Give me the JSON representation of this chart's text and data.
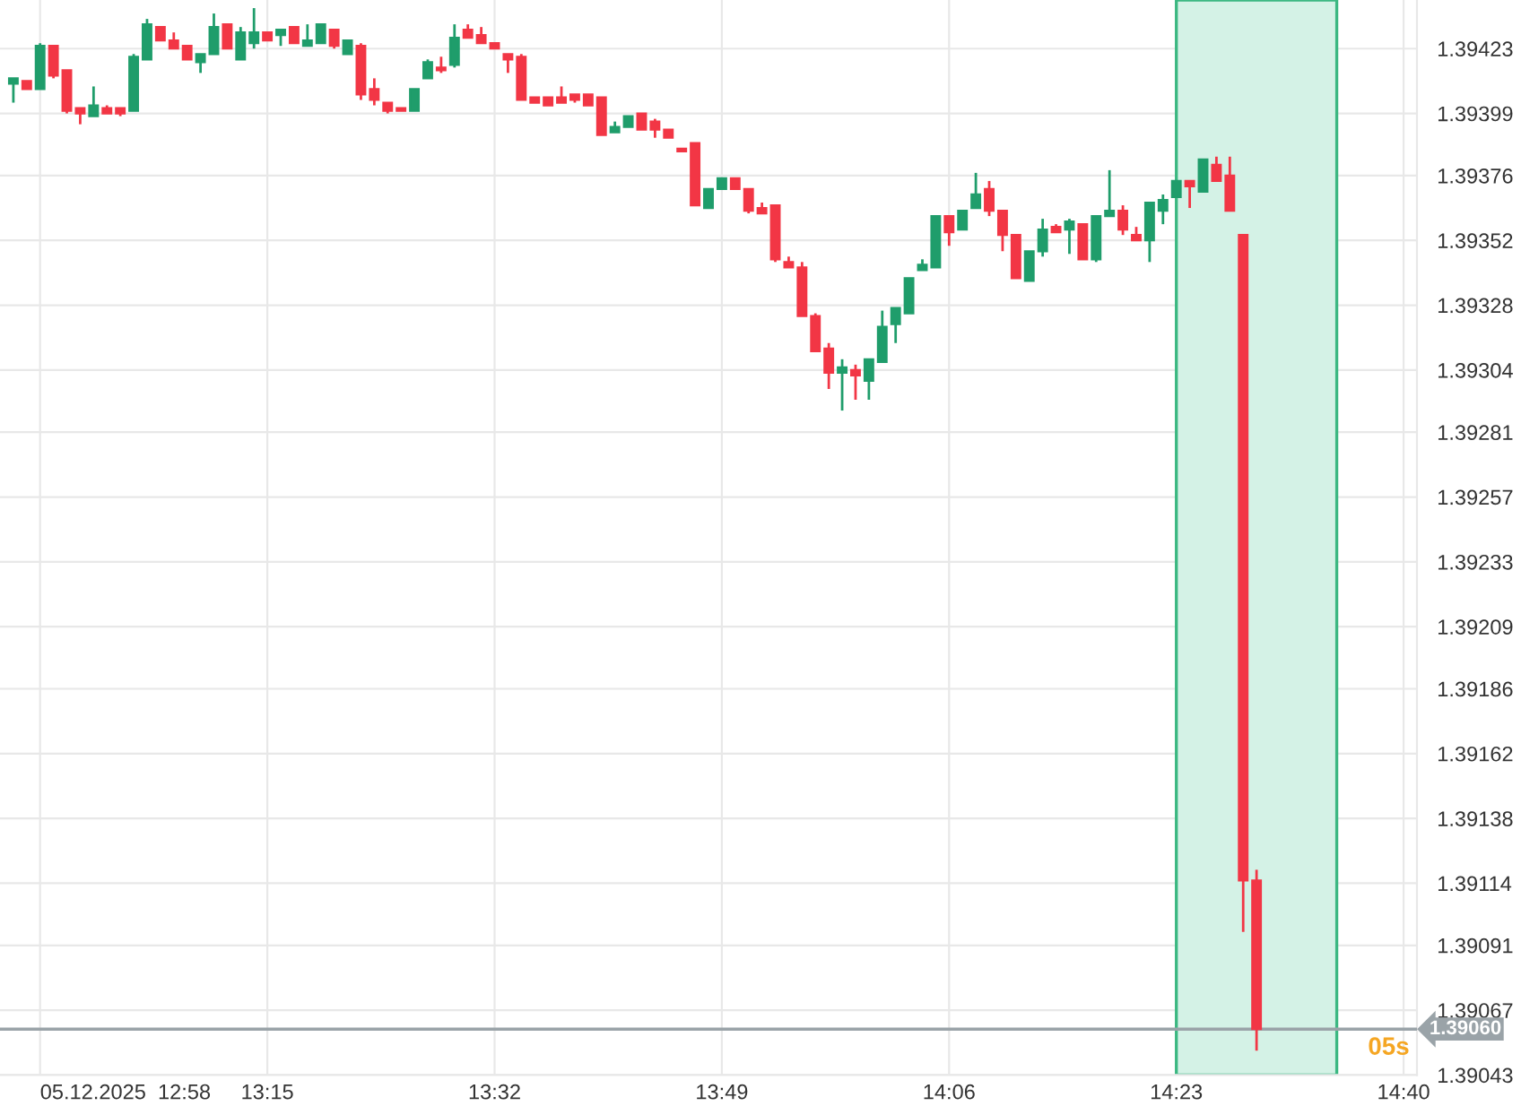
{
  "chart_data": {
    "type": "candlestick",
    "x": [
      "2025-12-05T12:56",
      "2025-12-05T12:57",
      "2025-12-05T12:58",
      "2025-12-05T12:59",
      "2025-12-05T13:00",
      "2025-12-05T13:01",
      "2025-12-05T13:02",
      "2025-12-05T13:03",
      "2025-12-05T13:04",
      "2025-12-05T13:05",
      "2025-12-05T13:06",
      "2025-12-05T13:07",
      "2025-12-05T13:08",
      "2025-12-05T13:09",
      "2025-12-05T13:10",
      "2025-12-05T13:11",
      "2025-12-05T13:12",
      "2025-12-05T13:13",
      "2025-12-05T13:14",
      "2025-12-05T13:15",
      "2025-12-05T13:16",
      "2025-12-05T13:17",
      "2025-12-05T13:18",
      "2025-12-05T13:19",
      "2025-12-05T13:20",
      "2025-12-05T13:21",
      "2025-12-05T13:22",
      "2025-12-05T13:23",
      "2025-12-05T13:24",
      "2025-12-05T13:25",
      "2025-12-05T13:26",
      "2025-12-05T13:27",
      "2025-12-05T13:28",
      "2025-12-05T13:29",
      "2025-12-05T13:30",
      "2025-12-05T13:31",
      "2025-12-05T13:32",
      "2025-12-05T13:33",
      "2025-12-05T13:34",
      "2025-12-05T13:35",
      "2025-12-05T13:36",
      "2025-12-05T13:37",
      "2025-12-05T13:38",
      "2025-12-05T13:39",
      "2025-12-05T13:40",
      "2025-12-05T13:41",
      "2025-12-05T13:42",
      "2025-12-05T13:43",
      "2025-12-05T13:44",
      "2025-12-05T13:45",
      "2025-12-05T13:46",
      "2025-12-05T13:47",
      "2025-12-05T13:48",
      "2025-12-05T13:49",
      "2025-12-05T13:50",
      "2025-12-05T13:51",
      "2025-12-05T13:52",
      "2025-12-05T13:53",
      "2025-12-05T13:54",
      "2025-12-05T13:55",
      "2025-12-05T13:56",
      "2025-12-05T13:57",
      "2025-12-05T13:58",
      "2025-12-05T13:59",
      "2025-12-05T14:00",
      "2025-12-05T14:01",
      "2025-12-05T14:02",
      "2025-12-05T14:03",
      "2025-12-05T14:04",
      "2025-12-05T14:05",
      "2025-12-05T14:06",
      "2025-12-05T14:07",
      "2025-12-05T14:08",
      "2025-12-05T14:09",
      "2025-12-05T14:10",
      "2025-12-05T14:11",
      "2025-12-05T14:12",
      "2025-12-05T14:13",
      "2025-12-05T14:14",
      "2025-12-05T14:15",
      "2025-12-05T14:16",
      "2025-12-05T14:17",
      "2025-12-05T14:18",
      "2025-12-05T14:19",
      "2025-12-05T14:20",
      "2025-12-05T14:21",
      "2025-12-05T14:22",
      "2025-12-05T14:23",
      "2025-12-05T14:24",
      "2025-12-05T14:25",
      "2025-12-05T14:26",
      "2025-12-05T14:27",
      "2025-12-05T14:28",
      "2025-12-05T14:29"
    ],
    "ohlc": [
      [
        1.3941,
        1.39412,
        1.39403,
        1.39412
      ],
      [
        1.39411,
        1.39411,
        1.39408,
        1.39408
      ],
      [
        1.39408,
        1.39425,
        1.39408,
        1.39424
      ],
      [
        1.39424,
        1.39424,
        1.39412,
        1.39413
      ],
      [
        1.39415,
        1.39415,
        1.39399,
        1.394
      ],
      [
        1.39401,
        1.39401,
        1.39395,
        1.39399
      ],
      [
        1.39398,
        1.39409,
        1.39398,
        1.39402
      ],
      [
        1.39401,
        1.39402,
        1.39399,
        1.39399
      ],
      [
        1.39401,
        1.39401,
        1.39398,
        1.39399
      ],
      [
        1.394,
        1.39421,
        1.394,
        1.3942
      ],
      [
        1.39419,
        1.39434,
        1.39419,
        1.39432
      ],
      [
        1.39431,
        1.39431,
        1.39426,
        1.39426
      ],
      [
        1.39426,
        1.39429,
        1.39423,
        1.39423
      ],
      [
        1.39424,
        1.39424,
        1.39419,
        1.39419
      ],
      [
        1.39418,
        1.39421,
        1.39414,
        1.39421
      ],
      [
        1.39421,
        1.39436,
        1.39421,
        1.39431
      ],
      [
        1.39432,
        1.39432,
        1.39423,
        1.39423
      ],
      [
        1.39419,
        1.39431,
        1.39419,
        1.39429
      ],
      [
        1.39425,
        1.39438,
        1.39423,
        1.39429
      ],
      [
        1.39429,
        1.39429,
        1.39426,
        1.39426
      ],
      [
        1.39428,
        1.3943,
        1.39424,
        1.3943
      ],
      [
        1.39431,
        1.39431,
        1.39425,
        1.39425
      ],
      [
        1.39424,
        1.39432,
        1.39424,
        1.39426
      ],
      [
        1.39425,
        1.39432,
        1.39425,
        1.39432
      ],
      [
        1.3943,
        1.3943,
        1.39423,
        1.39424
      ],
      [
        1.39421,
        1.39426,
        1.39421,
        1.39426
      ],
      [
        1.39424,
        1.39425,
        1.39404,
        1.39406
      ],
      [
        1.39408,
        1.39412,
        1.39402,
        1.39404
      ],
      [
        1.39403,
        1.39403,
        1.39399,
        1.394
      ],
      [
        1.39401,
        1.39401,
        1.394,
        1.394
      ],
      [
        1.394,
        1.39408,
        1.394,
        1.39408
      ],
      [
        1.39412,
        1.39419,
        1.39412,
        1.39418
      ],
      [
        1.39416,
        1.3942,
        1.39414,
        1.39415
      ],
      [
        1.39417,
        1.39432,
        1.39416,
        1.39427
      ],
      [
        1.3943,
        1.39432,
        1.39427,
        1.39427
      ],
      [
        1.39428,
        1.39431,
        1.39425,
        1.39425
      ],
      [
        1.39425,
        1.39425,
        1.39423,
        1.39423
      ],
      [
        1.39421,
        1.39421,
        1.39414,
        1.39419
      ],
      [
        1.3942,
        1.39421,
        1.39404,
        1.39404
      ],
      [
        1.39405,
        1.39405,
        1.39403,
        1.39403
      ],
      [
        1.39405,
        1.39405,
        1.39402,
        1.39402
      ],
      [
        1.39405,
        1.39409,
        1.39403,
        1.39403
      ],
      [
        1.39406,
        1.39406,
        1.39403,
        1.39404
      ],
      [
        1.39406,
        1.39406,
        1.39402,
        1.39402
      ],
      [
        1.39405,
        1.39405,
        1.39391,
        1.39391
      ],
      [
        1.39392,
        1.39396,
        1.39392,
        1.39394
      ],
      [
        1.39394,
        1.39398,
        1.39394,
        1.39398
      ],
      [
        1.39399,
        1.39399,
        1.39393,
        1.39393
      ],
      [
        1.39396,
        1.39397,
        1.3939,
        1.39393
      ],
      [
        1.39393,
        1.39393,
        1.3939,
        1.3939
      ],
      [
        1.39386,
        1.39386,
        1.39385,
        1.39385
      ],
      [
        1.39388,
        1.39388,
        1.39365,
        1.39365
      ],
      [
        1.39364,
        1.39371,
        1.39364,
        1.39371
      ],
      [
        1.39371,
        1.39375,
        1.39371,
        1.39375
      ],
      [
        1.39375,
        1.39375,
        1.39371,
        1.39371
      ],
      [
        1.39371,
        1.39371,
        1.39362,
        1.39363
      ],
      [
        1.39364,
        1.39366,
        1.39362,
        1.39362
      ],
      [
        1.39365,
        1.39365,
        1.39344,
        1.39345
      ],
      [
        1.39344,
        1.39346,
        1.39342,
        1.39342
      ],
      [
        1.39342,
        1.39344,
        1.39324,
        1.39324
      ],
      [
        1.39324,
        1.39325,
        1.39311,
        1.39311
      ],
      [
        1.39312,
        1.39314,
        1.39297,
        1.39303
      ],
      [
        1.39303,
        1.39308,
        1.39289,
        1.39305
      ],
      [
        1.39304,
        1.39306,
        1.39293,
        1.39302
      ],
      [
        1.393,
        1.39308,
        1.39293,
        1.39308
      ],
      [
        1.39307,
        1.39326,
        1.39307,
        1.3932
      ],
      [
        1.39321,
        1.39327,
        1.39314,
        1.39327
      ],
      [
        1.39325,
        1.39338,
        1.39325,
        1.39338
      ],
      [
        1.39341,
        1.39345,
        1.39341,
        1.39343
      ],
      [
        1.39342,
        1.39361,
        1.39342,
        1.39361
      ],
      [
        1.39361,
        1.39361,
        1.3935,
        1.39355
      ],
      [
        1.39356,
        1.39363,
        1.39356,
        1.39363
      ],
      [
        1.39364,
        1.39377,
        1.39364,
        1.39369
      ],
      [
        1.39371,
        1.39374,
        1.39361,
        1.39363
      ],
      [
        1.39363,
        1.39363,
        1.39348,
        1.39354
      ],
      [
        1.39354,
        1.39354,
        1.39338,
        1.39338
      ],
      [
        1.39337,
        1.39348,
        1.39337,
        1.39348
      ],
      [
        1.39348,
        1.3936,
        1.39346,
        1.39356
      ],
      [
        1.39357,
        1.39358,
        1.39355,
        1.39355
      ],
      [
        1.39356,
        1.3936,
        1.39347,
        1.39359
      ],
      [
        1.39358,
        1.39358,
        1.39345,
        1.39345
      ],
      [
        1.39345,
        1.39361,
        1.39344,
        1.39361
      ],
      [
        1.39361,
        1.39378,
        1.39361,
        1.39363
      ],
      [
        1.39363,
        1.39365,
        1.39354,
        1.39356
      ],
      [
        1.39354,
        1.39357,
        1.39352,
        1.39352
      ],
      [
        1.39352,
        1.39366,
        1.39344,
        1.39366
      ],
      [
        1.39363,
        1.39369,
        1.39358,
        1.39367
      ],
      [
        1.39368,
        1.39374,
        1.39368,
        1.39374
      ],
      [
        1.39374,
        1.39374,
        1.39364,
        1.39372
      ],
      [
        1.3937,
        1.39382,
        1.3937,
        1.39382
      ],
      [
        1.3938,
        1.39383,
        1.39374,
        1.39374
      ],
      [
        1.39376,
        1.39383,
        1.39363,
        1.39363
      ],
      [
        1.39354,
        1.39354,
        1.39096,
        1.39115
      ],
      [
        1.39115,
        1.39119,
        1.39052,
        1.3906
      ]
    ],
    "colors": [
      "#1f9d6b",
      "#f23645",
      "#1f9d6b",
      "#f23645",
      "#f23645",
      "#f23645",
      "#1f9d6b",
      "#f23645",
      "#f23645",
      "#1f9d6b",
      "#1f9d6b",
      "#f23645",
      "#f23645",
      "#f23645",
      "#1f9d6b",
      "#1f9d6b",
      "#f23645",
      "#1f9d6b",
      "#1f9d6b",
      "#f23645",
      "#1f9d6b",
      "#f23645",
      "#1f9d6b",
      "#1f9d6b",
      "#f23645",
      "#1f9d6b",
      "#f23645",
      "#f23645",
      "#f23645",
      "#f23645",
      "#1f9d6b",
      "#1f9d6b",
      "#f23645",
      "#1f9d6b",
      "#f23645",
      "#f23645",
      "#f23645",
      "#f23645",
      "#f23645",
      "#f23645",
      "#f23645",
      "#f23645",
      "#f23645",
      "#f23645",
      "#f23645",
      "#1f9d6b",
      "#1f9d6b",
      "#f23645",
      "#f23645",
      "#f23645",
      "#f23645",
      "#f23645",
      "#1f9d6b",
      "#1f9d6b",
      "#f23645",
      "#f23645",
      "#f23645",
      "#f23645",
      "#f23645",
      "#f23645",
      "#f23645",
      "#f23645",
      "#1f9d6b",
      "#f23645",
      "#1f9d6b",
      "#1f9d6b",
      "#1f9d6b",
      "#1f9d6b",
      "#1f9d6b",
      "#1f9d6b",
      "#f23645",
      "#1f9d6b",
      "#1f9d6b",
      "#f23645",
      "#f23645",
      "#f23645",
      "#1f9d6b",
      "#1f9d6b",
      "#f23645",
      "#1f9d6b",
      "#f23645",
      "#1f9d6b",
      "#1f9d6b",
      "#f23645",
      "#f23645",
      "#1f9d6b",
      "#1f9d6b",
      "#1f9d6b",
      "#f23645",
      "#1f9d6b",
      "#f23645",
      "#f23645",
      "#f23645",
      "#f23645"
    ],
    "xlim": [
      "2025-12-05T12:55",
      "2025-12-05T14:41"
    ],
    "xticks": [
      {
        "value": "2025-12-05T12:58",
        "label": "05.12.2025  12:58"
      },
      {
        "value": "2025-12-05T13:15",
        "label": "13:15"
      },
      {
        "value": "2025-12-05T13:32",
        "label": "13:32"
      },
      {
        "value": "2025-12-05T13:49",
        "label": "13:49"
      },
      {
        "value": "2025-12-05T14:06",
        "label": "14:06"
      },
      {
        "value": "2025-12-05T14:23",
        "label": "14:23"
      },
      {
        "value": "2025-12-05T14:40",
        "label": "14:40"
      }
    ],
    "ylim": [
      1.39043,
      1.39441
    ],
    "yticks": [
      1.39043,
      1.39067,
      1.39091,
      1.39114,
      1.39138,
      1.39162,
      1.39186,
      1.39209,
      1.39233,
      1.39257,
      1.39281,
      1.39304,
      1.39328,
      1.39352,
      1.39376,
      1.39399,
      1.39423
    ],
    "grid": true,
    "bands": [
      {
        "axis": "x",
        "from": "2025-12-05T14:23",
        "to": "2025-12-05T14:35",
        "color": "#d4f2e6"
      }
    ],
    "ref_lines": [
      {
        "axis": "y",
        "value": 1.3906,
        "label": "1.39060",
        "color": "#9aa3a8"
      }
    ],
    "annotations": [
      "05s"
    ]
  }
}
